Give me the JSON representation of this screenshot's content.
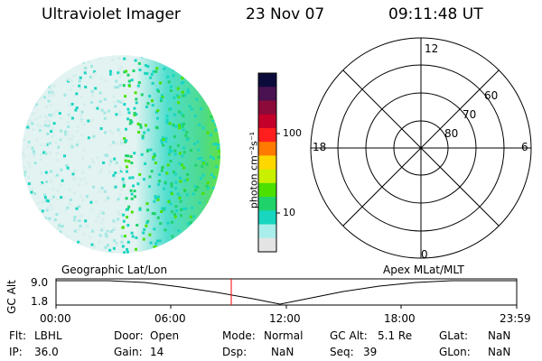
{
  "header": {
    "instrument": "Ultraviolet Imager",
    "date": "23 Nov 07",
    "time": "09:11:48 UT"
  },
  "colorbar": {
    "label": "photon cm⁻²s⁻¹",
    "ticks": [
      "100",
      "10"
    ],
    "colors": [
      "#0b0b3b",
      "#4a1250",
      "#8b0a3a",
      "#c4002a",
      "#ff1e1e",
      "#ff7a00",
      "#ffd700",
      "#c8f000",
      "#4ce000",
      "#1fd36a",
      "#19d6c0",
      "#a9eeea",
      "#e4e4e4"
    ]
  },
  "polar_grid": {
    "mlt_labels": {
      "top": "12",
      "left": "18",
      "right": "6",
      "bottom": "0"
    },
    "lat_labels": [
      "60",
      "70",
      "80"
    ]
  },
  "timeline": {
    "left_title": "Geographic Lat/Lon",
    "right_title": "Apex MLat/MLT",
    "axis_label": "GC Alt",
    "y_ticks": [
      "9.0",
      "1.8"
    ],
    "x_ticks": [
      "00:00",
      "06:00",
      "12:00",
      "18:00",
      "23:59"
    ],
    "marker_color": "#ff0000"
  },
  "info": {
    "flt_label": "Flt:",
    "flt_value": "LBHL",
    "ip_label": "IP:",
    "ip_value": "36.0",
    "door_label": "Door:",
    "door_value": "Open",
    "gain_label": "Gain:",
    "gain_value": "14",
    "mode_label": "Mode:",
    "mode_value": "Normal",
    "dsp_label": "Dsp:",
    "dsp_value": "NaN",
    "gcalt_label": "GC Alt:",
    "gcalt_value": "5.1 Re",
    "seq_label": "Seq:",
    "seq_value": "39",
    "glat_label": "GLat:",
    "glat_value": "NaN",
    "glon_label": "GLon:",
    "glon_value": "NaN"
  }
}
